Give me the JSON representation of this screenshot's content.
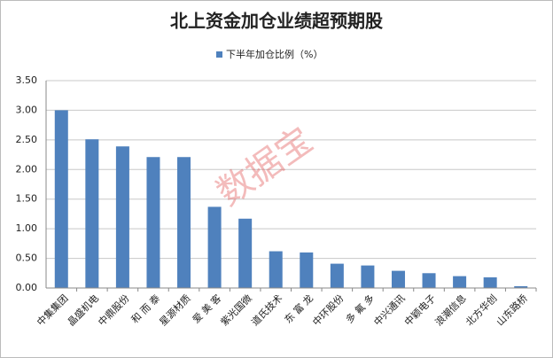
{
  "chart_data": {
    "type": "bar",
    "title": "北上资金加仓业绩超预期股",
    "legend": "下半年加仓比例（%）",
    "watermark": "数据宝",
    "categories": [
      "中集集团",
      "晶盛机电",
      "中鼎股份",
      "和 而 泰",
      "星源材质",
      "爱 美 客",
      "紫光国微",
      "道氏技术",
      "东 富 龙",
      "中环股份",
      "多 氟 多",
      "中兴通讯",
      "中颖电子",
      "浪潮信息",
      "北方华创",
      "山东路桥"
    ],
    "values": [
      3.0,
      2.51,
      2.39,
      2.21,
      2.21,
      1.37,
      1.17,
      0.62,
      0.6,
      0.41,
      0.38,
      0.29,
      0.25,
      0.2,
      0.18,
      0.03
    ],
    "color": "#4f81bd",
    "ylim": [
      0,
      3.5
    ],
    "yticks": [
      {
        "value": 0,
        "label": "0.00"
      },
      {
        "value": 0.5,
        "label": "0.50"
      },
      {
        "value": 1,
        "label": "1.00"
      },
      {
        "value": 1.5,
        "label": "1.50"
      },
      {
        "value": 2,
        "label": "2.00"
      },
      {
        "value": 2.5,
        "label": "2.50"
      },
      {
        "value": 3,
        "label": "3.00"
      },
      {
        "value": 3.5,
        "label": "3.50"
      }
    ],
    "grid": true
  }
}
